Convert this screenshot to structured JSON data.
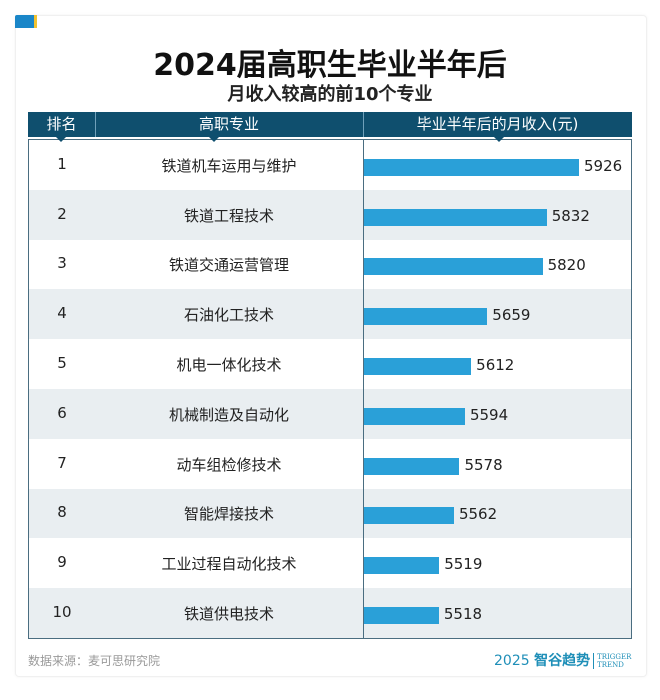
{
  "title": "2024届高职生毕业半年后",
  "subtitle": "月收入较高的前10个专业",
  "headers": {
    "rank": "排名",
    "major": "高职专业",
    "income": "毕业半年后的月收入(元)"
  },
  "source": "数据来源：麦可思研究院",
  "logo": {
    "year": "2025",
    "name": "智谷趋势",
    "en1": "TRIGGER",
    "en2": "TREND"
  },
  "colors": {
    "header": "#0f4f6e",
    "bar": "#2aa0d8",
    "alt_row": "#e9eef1"
  },
  "chart_data": {
    "type": "bar",
    "orientation": "horizontal",
    "categories": [
      "铁道机车运用与维护",
      "铁道工程技术",
      "铁道交通运营管理",
      "石油化工技术",
      "机电一体化技术",
      "机械制造及自动化",
      "动车组检修技术",
      "智能焊接技术",
      "工业过程自动化技术",
      "铁道供电技术"
    ],
    "ranks": [
      "1",
      "2",
      "3",
      "4",
      "5",
      "6",
      "7",
      "8",
      "9",
      "10"
    ],
    "values": [
      5926,
      5832,
      5820,
      5659,
      5612,
      5594,
      5578,
      5562,
      5519,
      5518
    ],
    "ylabel": "毕业半年后的月收入(元)",
    "data_labels": true
  }
}
